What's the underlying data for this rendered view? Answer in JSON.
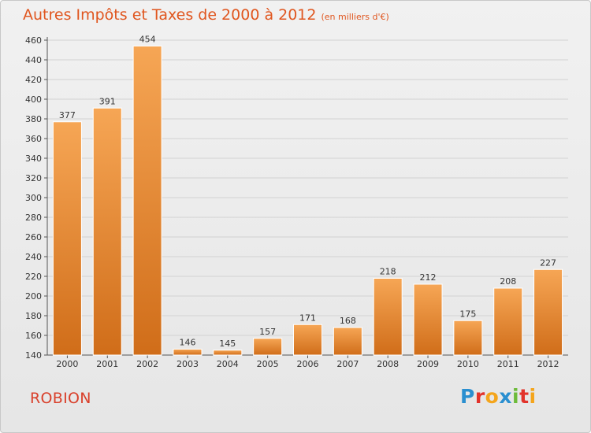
{
  "title": "Autres Impôts et Taxes de 2000 à 2012",
  "subtitle": "(en milliers d'€)",
  "place": "ROBION",
  "brand": {
    "letters": [
      "P",
      "r",
      "o",
      "x",
      "i",
      "t",
      "i"
    ],
    "colors": [
      "#2a8fd0",
      "#e2332b",
      "#f4a51c",
      "#2a8fd0",
      "#6dbb3a",
      "#e2332b",
      "#f4a51c"
    ]
  },
  "colors": {
    "bar_top": "#f6a655",
    "bar_bottom": "#d06d19",
    "title": "#e0561f",
    "place": "#d9402b"
  },
  "chart_data": {
    "type": "bar",
    "title": "Autres Impôts et Taxes de 2000 à 2012",
    "subtitle": "(en milliers d'€)",
    "categories": [
      "2000",
      "2001",
      "2002",
      "2003",
      "2004",
      "2005",
      "2006",
      "2007",
      "2008",
      "2009",
      "2010",
      "2011",
      "2012"
    ],
    "values": [
      377,
      391,
      454,
      146,
      145,
      157,
      171,
      168,
      218,
      212,
      175,
      208,
      227
    ],
    "ylim": [
      140,
      460
    ],
    "yticks": [
      140,
      160,
      180,
      200,
      220,
      240,
      260,
      280,
      300,
      320,
      340,
      360,
      380,
      400,
      420,
      440,
      460
    ],
    "grid": true,
    "legend": "none"
  }
}
